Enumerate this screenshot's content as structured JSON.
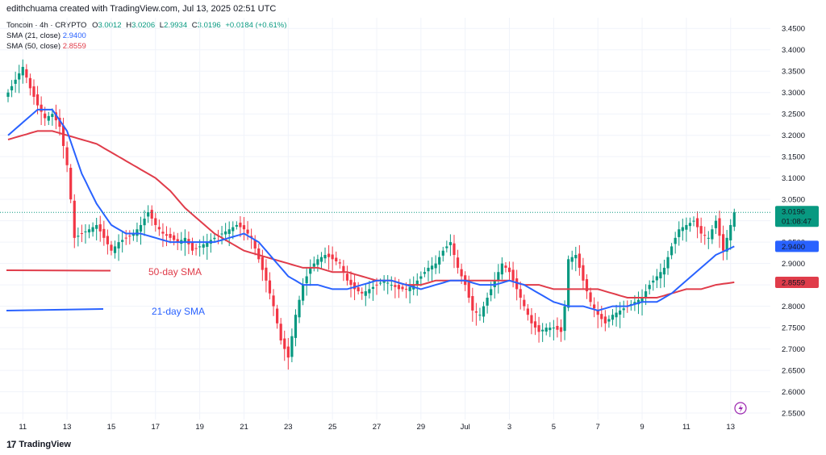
{
  "header": {
    "text": "edithchuama created with TradingView.com, Jul 13, 2025 02:51 UTC"
  },
  "legend": {
    "symbol": "Toncoin · 4h · CRYPTO",
    "ohlc": [
      {
        "label": "O",
        "value": "3.0012"
      },
      {
        "label": "H",
        "value": "3.0206"
      },
      {
        "label": "L",
        "value": "2.9934"
      },
      {
        "label": "C",
        "value": "3.0196"
      }
    ],
    "change": "+0.0184 (+0.61%)",
    "sma21": {
      "label": "SMA (21, close)",
      "value": "2.9400",
      "color": "#2962ff"
    },
    "sma50": {
      "label": "SMA (50, close)",
      "value": "2.8559",
      "color": "#e03c4a"
    }
  },
  "footer": {
    "brand": "TradingView",
    "logo": "17"
  },
  "chart_data": {
    "type": "candlestick",
    "price_labels": [
      "3.4500",
      "3.4000",
      "3.3500",
      "3.3000",
      "3.2500",
      "3.2000",
      "3.1500",
      "3.1000",
      "3.0500",
      "3.0000",
      "2.9500",
      "2.9000",
      "2.8500",
      "2.8000",
      "2.7500",
      "2.7000",
      "2.6500",
      "2.6000",
      "2.5500"
    ],
    "ylim": [
      2.535,
      3.475
    ],
    "x_ticks": [
      {
        "label": "11",
        "i": 4
      },
      {
        "label": "13",
        "i": 16
      },
      {
        "label": "15",
        "i": 28
      },
      {
        "label": "17",
        "i": 40
      },
      {
        "label": "19",
        "i": 52
      },
      {
        "label": "21",
        "i": 64
      },
      {
        "label": "23",
        "i": 76
      },
      {
        "label": "25",
        "i": 88
      },
      {
        "label": "27",
        "i": 100
      },
      {
        "label": "29",
        "i": 112
      },
      {
        "label": "Jul",
        "i": 124
      },
      {
        "label": "3",
        "i": 136
      },
      {
        "label": "5",
        "i": 148
      },
      {
        "label": "7",
        "i": 160
      },
      {
        "label": "9",
        "i": 172
      },
      {
        "label": "11",
        "i": 184
      },
      {
        "label": "13",
        "i": 196
      }
    ],
    "current_price": {
      "value": 3.0196,
      "label": "3.0196",
      "countdown": "01:08:47",
      "color": "#089981"
    },
    "sma21_last": {
      "value": 2.94,
      "label": "2.9400",
      "color": "#2962ff"
    },
    "sma50_last": {
      "value": 2.8559,
      "label": "2.8559",
      "color": "#e03c4a"
    },
    "annotations": [
      {
        "text": "50-day SMA",
        "color": "#e03c4a"
      },
      {
        "text": "21-day SMA",
        "color": "#2962ff"
      }
    ],
    "up_color": "#089981",
    "down_color": "#f23645",
    "close_keys": [
      [
        0,
        3.3
      ],
      [
        2,
        3.33
      ],
      [
        4,
        3.36
      ],
      [
        6,
        3.31
      ],
      [
        8,
        3.27
      ],
      [
        10,
        3.24
      ],
      [
        12,
        3.25
      ],
      [
        14,
        3.22
      ],
      [
        16,
        3.13
      ],
      [
        17,
        3.05
      ],
      [
        18,
        2.96
      ],
      [
        20,
        2.97
      ],
      [
        24,
        2.99
      ],
      [
        26,
        2.96
      ],
      [
        28,
        2.93
      ],
      [
        30,
        2.95
      ],
      [
        32,
        2.96
      ],
      [
        34,
        2.97
      ],
      [
        36,
        2.99
      ],
      [
        38,
        3.02
      ],
      [
        40,
        2.99
      ],
      [
        42,
        2.97
      ],
      [
        44,
        2.96
      ],
      [
        46,
        2.95
      ],
      [
        48,
        2.96
      ],
      [
        50,
        2.93
      ],
      [
        52,
        2.94
      ],
      [
        54,
        2.95
      ],
      [
        56,
        2.96
      ],
      [
        58,
        2.97
      ],
      [
        60,
        2.98
      ],
      [
        62,
        2.99
      ],
      [
        64,
        2.98
      ],
      [
        66,
        2.96
      ],
      [
        68,
        2.91
      ],
      [
        70,
        2.86
      ],
      [
        72,
        2.8
      ],
      [
        74,
        2.72
      ],
      [
        76,
        2.68
      ],
      [
        77,
        2.73
      ],
      [
        78,
        2.78
      ],
      [
        80,
        2.85
      ],
      [
        82,
        2.89
      ],
      [
        84,
        2.91
      ],
      [
        86,
        2.92
      ],
      [
        88,
        2.91
      ],
      [
        90,
        2.9
      ],
      [
        92,
        2.86
      ],
      [
        94,
        2.84
      ],
      [
        96,
        2.83
      ],
      [
        98,
        2.84
      ],
      [
        100,
        2.85
      ],
      [
        102,
        2.86
      ],
      [
        104,
        2.85
      ],
      [
        106,
        2.84
      ],
      [
        108,
        2.84
      ],
      [
        110,
        2.85
      ],
      [
        112,
        2.87
      ],
      [
        114,
        2.89
      ],
      [
        116,
        2.9
      ],
      [
        118,
        2.93
      ],
      [
        120,
        2.95
      ],
      [
        122,
        2.89
      ],
      [
        124,
        2.85
      ],
      [
        126,
        2.79
      ],
      [
        128,
        2.78
      ],
      [
        130,
        2.82
      ],
      [
        132,
        2.86
      ],
      [
        134,
        2.9
      ],
      [
        136,
        2.88
      ],
      [
        138,
        2.84
      ],
      [
        140,
        2.8
      ],
      [
        142,
        2.76
      ],
      [
        144,
        2.74
      ],
      [
        146,
        2.75
      ],
      [
        148,
        2.75
      ],
      [
        150,
        2.74
      ],
      [
        151,
        2.8
      ],
      [
        152,
        2.91
      ],
      [
        154,
        2.92
      ],
      [
        156,
        2.86
      ],
      [
        158,
        2.81
      ],
      [
        160,
        2.78
      ],
      [
        162,
        2.76
      ],
      [
        164,
        2.78
      ],
      [
        166,
        2.79
      ],
      [
        168,
        2.8
      ],
      [
        170,
        2.81
      ],
      [
        172,
        2.82
      ],
      [
        174,
        2.85
      ],
      [
        176,
        2.87
      ],
      [
        178,
        2.89
      ],
      [
        180,
        2.94
      ],
      [
        182,
        2.98
      ],
      [
        184,
        2.99
      ],
      [
        186,
        3.0
      ],
      [
        188,
        2.97
      ],
      [
        190,
        2.96
      ],
      [
        192,
        3.0
      ],
      [
        194,
        2.93
      ],
      [
        196,
        2.99
      ],
      [
        197,
        3.0196
      ]
    ],
    "sma21_keys": [
      [
        0,
        3.2
      ],
      [
        4,
        3.23
      ],
      [
        8,
        3.26
      ],
      [
        12,
        3.26
      ],
      [
        16,
        3.21
      ],
      [
        20,
        3.11
      ],
      [
        24,
        3.04
      ],
      [
        28,
        2.99
      ],
      [
        32,
        2.97
      ],
      [
        36,
        2.97
      ],
      [
        40,
        2.96
      ],
      [
        44,
        2.95
      ],
      [
        48,
        2.95
      ],
      [
        52,
        2.95
      ],
      [
        56,
        2.95
      ],
      [
        60,
        2.96
      ],
      [
        64,
        2.97
      ],
      [
        68,
        2.95
      ],
      [
        72,
        2.91
      ],
      [
        76,
        2.87
      ],
      [
        80,
        2.85
      ],
      [
        84,
        2.85
      ],
      [
        88,
        2.84
      ],
      [
        92,
        2.84
      ],
      [
        96,
        2.85
      ],
      [
        100,
        2.86
      ],
      [
        104,
        2.86
      ],
      [
        108,
        2.85
      ],
      [
        112,
        2.84
      ],
      [
        116,
        2.85
      ],
      [
        120,
        2.86
      ],
      [
        124,
        2.86
      ],
      [
        128,
        2.85
      ],
      [
        132,
        2.85
      ],
      [
        136,
        2.86
      ],
      [
        140,
        2.85
      ],
      [
        144,
        2.83
      ],
      [
        148,
        2.81
      ],
      [
        152,
        2.8
      ],
      [
        156,
        2.8
      ],
      [
        160,
        2.79
      ],
      [
        164,
        2.8
      ],
      [
        168,
        2.8
      ],
      [
        172,
        2.81
      ],
      [
        176,
        2.81
      ],
      [
        180,
        2.83
      ],
      [
        184,
        2.86
      ],
      [
        188,
        2.89
      ],
      [
        192,
        2.92
      ],
      [
        197,
        2.94
      ]
    ],
    "sma50_keys": [
      [
        0,
        3.19
      ],
      [
        4,
        3.2
      ],
      [
        8,
        3.21
      ],
      [
        12,
        3.21
      ],
      [
        16,
        3.2
      ],
      [
        20,
        3.19
      ],
      [
        24,
        3.18
      ],
      [
        28,
        3.16
      ],
      [
        32,
        3.14
      ],
      [
        36,
        3.12
      ],
      [
        40,
        3.1
      ],
      [
        44,
        3.07
      ],
      [
        48,
        3.03
      ],
      [
        52,
        3.0
      ],
      [
        56,
        2.97
      ],
      [
        60,
        2.95
      ],
      [
        64,
        2.93
      ],
      [
        68,
        2.92
      ],
      [
        72,
        2.91
      ],
      [
        76,
        2.9
      ],
      [
        80,
        2.89
      ],
      [
        84,
        2.89
      ],
      [
        88,
        2.88
      ],
      [
        92,
        2.88
      ],
      [
        96,
        2.87
      ],
      [
        100,
        2.86
      ],
      [
        104,
        2.86
      ],
      [
        108,
        2.85
      ],
      [
        112,
        2.85
      ],
      [
        116,
        2.86
      ],
      [
        120,
        2.86
      ],
      [
        124,
        2.86
      ],
      [
        128,
        2.86
      ],
      [
        132,
        2.86
      ],
      [
        136,
        2.86
      ],
      [
        140,
        2.85
      ],
      [
        144,
        2.85
      ],
      [
        148,
        2.84
      ],
      [
        152,
        2.84
      ],
      [
        156,
        2.84
      ],
      [
        160,
        2.84
      ],
      [
        164,
        2.83
      ],
      [
        168,
        2.82
      ],
      [
        172,
        2.82
      ],
      [
        176,
        2.82
      ],
      [
        180,
        2.83
      ],
      [
        184,
        2.84
      ],
      [
        188,
        2.84
      ],
      [
        192,
        2.85
      ],
      [
        197,
        2.856
      ]
    ]
  }
}
